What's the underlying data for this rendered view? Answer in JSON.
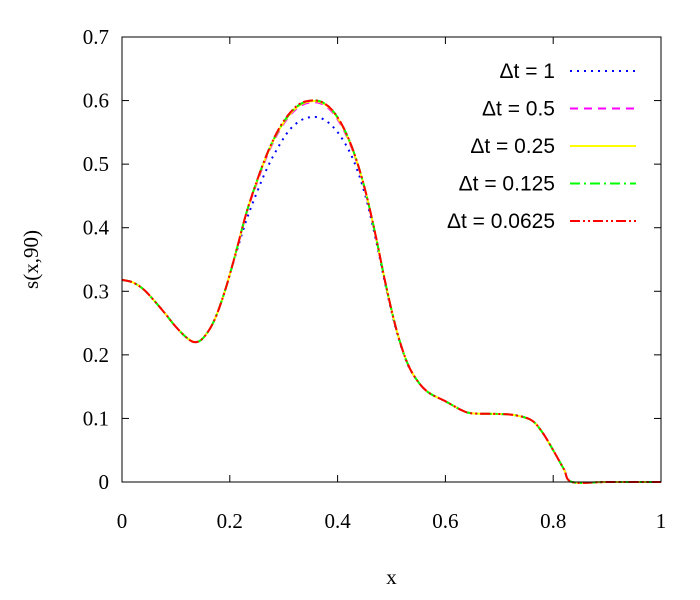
{
  "chart_data": {
    "type": "line",
    "title": "",
    "xlabel": "x",
    "ylabel": "s(x,90)",
    "xlim": [
      0,
      1
    ],
    "ylim": [
      0,
      0.7
    ],
    "x_ticks": [
      "0",
      "0.2",
      "0.4",
      "0.6",
      "0.8",
      "1"
    ],
    "y_ticks": [
      "0",
      "0.1",
      "0.2",
      "0.3",
      "0.4",
      "0.5",
      "0.6",
      "0.7"
    ],
    "legend_position": "top-right",
    "grid": false,
    "series": [
      {
        "name": "Δt = 1",
        "color": "#0000ff",
        "dash": "dotted",
        "points": [
          [
            0,
            0.318
          ],
          [
            0.02,
            0.314
          ],
          [
            0.04,
            0.303
          ],
          [
            0.06,
            0.285
          ],
          [
            0.08,
            0.265
          ],
          [
            0.1,
            0.244
          ],
          [
            0.12,
            0.227
          ],
          [
            0.135,
            0.22
          ],
          [
            0.15,
            0.226
          ],
          [
            0.17,
            0.252
          ],
          [
            0.19,
            0.298
          ],
          [
            0.21,
            0.355
          ],
          [
            0.23,
            0.41
          ],
          [
            0.25,
            0.455
          ],
          [
            0.27,
            0.495
          ],
          [
            0.29,
            0.527
          ],
          [
            0.31,
            0.553
          ],
          [
            0.33,
            0.568
          ],
          [
            0.35,
            0.574
          ],
          [
            0.37,
            0.572
          ],
          [
            0.39,
            0.56
          ],
          [
            0.41,
            0.538
          ],
          [
            0.43,
            0.505
          ],
          [
            0.45,
            0.455
          ],
          [
            0.47,
            0.385
          ],
          [
            0.49,
            0.305
          ],
          [
            0.51,
            0.235
          ],
          [
            0.53,
            0.185
          ],
          [
            0.55,
            0.157
          ],
          [
            0.57,
            0.14
          ],
          [
            0.6,
            0.127
          ],
          [
            0.63,
            0.113
          ],
          [
            0.65,
            0.108
          ],
          [
            0.7,
            0.107
          ],
          [
            0.73,
            0.105
          ],
          [
            0.76,
            0.097
          ],
          [
            0.78,
            0.078
          ],
          [
            0.8,
            0.05
          ],
          [
            0.82,
            0.02
          ],
          [
            0.835,
            0.0
          ],
          [
            0.9,
            0.0
          ],
          [
            1.0,
            0.0
          ]
        ]
      },
      {
        "name": "Δt = 0.5",
        "color": "#ff00ff",
        "dash": "dashed",
        "points": [
          [
            0,
            0.318
          ],
          [
            0.02,
            0.314
          ],
          [
            0.04,
            0.303
          ],
          [
            0.06,
            0.285
          ],
          [
            0.08,
            0.265
          ],
          [
            0.1,
            0.244
          ],
          [
            0.12,
            0.227
          ],
          [
            0.135,
            0.22
          ],
          [
            0.15,
            0.226
          ],
          [
            0.17,
            0.252
          ],
          [
            0.19,
            0.298
          ],
          [
            0.21,
            0.357
          ],
          [
            0.23,
            0.42
          ],
          [
            0.25,
            0.47
          ],
          [
            0.27,
            0.515
          ],
          [
            0.29,
            0.55
          ],
          [
            0.31,
            0.575
          ],
          [
            0.33,
            0.591
          ],
          [
            0.35,
            0.597
          ],
          [
            0.37,
            0.595
          ],
          [
            0.39,
            0.582
          ],
          [
            0.41,
            0.556
          ],
          [
            0.43,
            0.517
          ],
          [
            0.45,
            0.462
          ],
          [
            0.47,
            0.39
          ],
          [
            0.49,
            0.308
          ],
          [
            0.51,
            0.237
          ],
          [
            0.53,
            0.186
          ],
          [
            0.55,
            0.157
          ],
          [
            0.57,
            0.14
          ],
          [
            0.6,
            0.127
          ],
          [
            0.63,
            0.113
          ],
          [
            0.65,
            0.108
          ],
          [
            0.7,
            0.107
          ],
          [
            0.73,
            0.105
          ],
          [
            0.76,
            0.097
          ],
          [
            0.78,
            0.078
          ],
          [
            0.8,
            0.05
          ],
          [
            0.82,
            0.02
          ],
          [
            0.835,
            0.0
          ],
          [
            0.9,
            0.0
          ],
          [
            1.0,
            0.0
          ]
        ]
      },
      {
        "name": "Δt = 0.25",
        "color": "#ffff00",
        "dash": "solid",
        "points": [
          [
            0,
            0.318
          ],
          [
            0.02,
            0.314
          ],
          [
            0.04,
            0.303
          ],
          [
            0.06,
            0.285
          ],
          [
            0.08,
            0.265
          ],
          [
            0.1,
            0.244
          ],
          [
            0.12,
            0.227
          ],
          [
            0.135,
            0.22
          ],
          [
            0.15,
            0.226
          ],
          [
            0.17,
            0.252
          ],
          [
            0.19,
            0.298
          ],
          [
            0.21,
            0.357
          ],
          [
            0.23,
            0.421
          ],
          [
            0.25,
            0.472
          ],
          [
            0.27,
            0.517
          ],
          [
            0.29,
            0.552
          ],
          [
            0.31,
            0.577
          ],
          [
            0.33,
            0.593
          ],
          [
            0.35,
            0.599
          ],
          [
            0.37,
            0.597
          ],
          [
            0.39,
            0.584
          ],
          [
            0.41,
            0.558
          ],
          [
            0.43,
            0.518
          ],
          [
            0.45,
            0.463
          ],
          [
            0.47,
            0.39
          ],
          [
            0.49,
            0.308
          ],
          [
            0.51,
            0.237
          ],
          [
            0.53,
            0.186
          ],
          [
            0.55,
            0.157
          ],
          [
            0.57,
            0.14
          ],
          [
            0.6,
            0.127
          ],
          [
            0.63,
            0.113
          ],
          [
            0.65,
            0.108
          ],
          [
            0.7,
            0.107
          ],
          [
            0.73,
            0.105
          ],
          [
            0.76,
            0.097
          ],
          [
            0.78,
            0.078
          ],
          [
            0.8,
            0.05
          ],
          [
            0.82,
            0.02
          ],
          [
            0.835,
            0.0
          ],
          [
            0.9,
            0.0
          ],
          [
            1.0,
            0.0
          ]
        ]
      },
      {
        "name": "Δt = 0.125",
        "color": "#00ff00",
        "dash": "dashdot",
        "points": [
          [
            0,
            0.318
          ],
          [
            0.02,
            0.314
          ],
          [
            0.04,
            0.303
          ],
          [
            0.06,
            0.285
          ],
          [
            0.08,
            0.265
          ],
          [
            0.1,
            0.244
          ],
          [
            0.12,
            0.227
          ],
          [
            0.135,
            0.22
          ],
          [
            0.15,
            0.226
          ],
          [
            0.17,
            0.252
          ],
          [
            0.19,
            0.298
          ],
          [
            0.21,
            0.357
          ],
          [
            0.23,
            0.421
          ],
          [
            0.25,
            0.473
          ],
          [
            0.27,
            0.518
          ],
          [
            0.29,
            0.553
          ],
          [
            0.31,
            0.578
          ],
          [
            0.33,
            0.594
          ],
          [
            0.35,
            0.6
          ],
          [
            0.37,
            0.598
          ],
          [
            0.39,
            0.585
          ],
          [
            0.41,
            0.559
          ],
          [
            0.43,
            0.519
          ],
          [
            0.45,
            0.463
          ],
          [
            0.47,
            0.39
          ],
          [
            0.49,
            0.308
          ],
          [
            0.51,
            0.237
          ],
          [
            0.53,
            0.186
          ],
          [
            0.55,
            0.157
          ],
          [
            0.57,
            0.14
          ],
          [
            0.6,
            0.127
          ],
          [
            0.63,
            0.113
          ],
          [
            0.65,
            0.108
          ],
          [
            0.7,
            0.107
          ],
          [
            0.73,
            0.105
          ],
          [
            0.76,
            0.097
          ],
          [
            0.78,
            0.078
          ],
          [
            0.8,
            0.05
          ],
          [
            0.82,
            0.02
          ],
          [
            0.835,
            0.0
          ],
          [
            0.9,
            0.0
          ],
          [
            1.0,
            0.0
          ]
        ]
      },
      {
        "name": "Δt = 0.0625",
        "color": "#ff0000",
        "dash": "dashdotdot",
        "points": [
          [
            0,
            0.318
          ],
          [
            0.02,
            0.314
          ],
          [
            0.04,
            0.303
          ],
          [
            0.06,
            0.285
          ],
          [
            0.08,
            0.265
          ],
          [
            0.1,
            0.244
          ],
          [
            0.12,
            0.227
          ],
          [
            0.135,
            0.22
          ],
          [
            0.15,
            0.226
          ],
          [
            0.17,
            0.252
          ],
          [
            0.19,
            0.298
          ],
          [
            0.21,
            0.357
          ],
          [
            0.23,
            0.421
          ],
          [
            0.25,
            0.473
          ],
          [
            0.27,
            0.518
          ],
          [
            0.29,
            0.554
          ],
          [
            0.31,
            0.579
          ],
          [
            0.33,
            0.595
          ],
          [
            0.35,
            0.6
          ],
          [
            0.37,
            0.598
          ],
          [
            0.39,
            0.585
          ],
          [
            0.41,
            0.559
          ],
          [
            0.43,
            0.519
          ],
          [
            0.45,
            0.463
          ],
          [
            0.47,
            0.39
          ],
          [
            0.49,
            0.308
          ],
          [
            0.51,
            0.237
          ],
          [
            0.53,
            0.186
          ],
          [
            0.55,
            0.157
          ],
          [
            0.57,
            0.14
          ],
          [
            0.6,
            0.127
          ],
          [
            0.63,
            0.113
          ],
          [
            0.65,
            0.108
          ],
          [
            0.7,
            0.107
          ],
          [
            0.73,
            0.105
          ],
          [
            0.76,
            0.097
          ],
          [
            0.78,
            0.078
          ],
          [
            0.8,
            0.05
          ],
          [
            0.82,
            0.02
          ],
          [
            0.835,
            0.0
          ],
          [
            0.9,
            0.0
          ],
          [
            1.0,
            0.0
          ]
        ]
      }
    ]
  }
}
